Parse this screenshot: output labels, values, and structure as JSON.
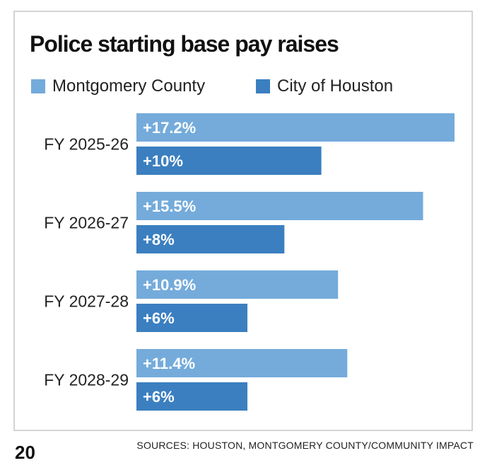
{
  "chart_data": {
    "type": "bar",
    "orientation": "horizontal",
    "title": "Police starting base pay raises",
    "categories": [
      "FY 2025-26",
      "FY 2026-27",
      "FY 2027-28",
      "FY 2028-29"
    ],
    "series": [
      {
        "name": "Montgomery County",
        "values": [
          17.2,
          15.5,
          10.9,
          11.4
        ],
        "labels": [
          "+17.2%",
          "+15.5%",
          "+10.9%",
          "+11.4%"
        ],
        "color": "#74abdb"
      },
      {
        "name": "City of Houston",
        "values": [
          10,
          8,
          6,
          6
        ],
        "labels": [
          "+10%",
          "+8%",
          "+6%",
          "+6%"
        ],
        "color": "#3b7fc0"
      }
    ],
    "legend_position": "top-left",
    "grid": false,
    "xlim": [
      0,
      17.2
    ]
  },
  "sources": "SOURCES: HOUSTON, MONTGOMERY COUNTY/COMMUNITY IMPACT",
  "page_number": "20"
}
